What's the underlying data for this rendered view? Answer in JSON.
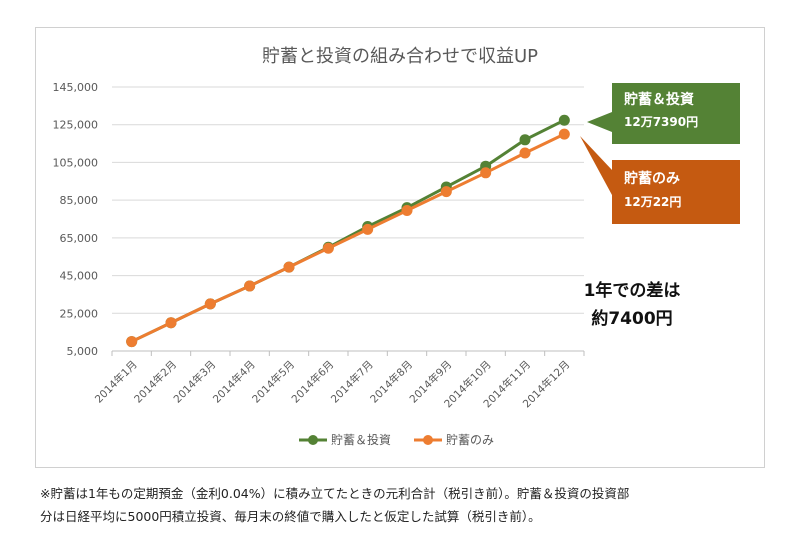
{
  "chart_data": {
    "type": "line",
    "title": "貯蓄と投資の組み合わせで収益UP",
    "categories": [
      "2014年1月",
      "2014年2月",
      "2014年3月",
      "2014年4月",
      "2014年5月",
      "2014年6月",
      "2014年7月",
      "2014年8月",
      "2014年9月",
      "2014年10月",
      "2014年11月",
      "2014年12月"
    ],
    "series": [
      {
        "name": "貯蓄＆投資",
        "color": "#548235",
        "values": [
          10000,
          20000,
          30000,
          39500,
          49500,
          60000,
          71000,
          81000,
          92000,
          103000,
          117000,
          127390
        ]
      },
      {
        "name": "貯蓄のみ",
        "color": "#ed7d31",
        "values": [
          10000,
          20000,
          30000,
          39500,
          49500,
          59500,
          69500,
          79500,
          89500,
          99500,
          110000,
          120022
        ]
      }
    ],
    "yticks": [
      "145,000",
      "125,000",
      "105,000",
      "85,000",
      "65,000",
      "45,000",
      "25,000",
      "5,000"
    ],
    "ylim": [
      5000,
      145000
    ],
    "grid": true,
    "legend": "bottom",
    "annotations": {
      "invest_callout": {
        "line1": "貯蓄＆投資",
        "line2": "12万7390円",
        "color": "#548235"
      },
      "saving_callout": {
        "line1": "貯蓄のみ",
        "line2": "12万22円",
        "color": "#c55a11"
      },
      "difference": {
        "line1": "1年での差は",
        "line2": "約7400円"
      }
    }
  },
  "footnote": {
    "line1": "※貯蓄は1年もの定期預金（金利0.04%）に積み立てたときの元利合計（税引き前）。貯蓄＆投資の投資部",
    "line2": "分は日経平均に5000円積立投資、毎月末の終値で購入したと仮定した試算（税引き前）。"
  }
}
